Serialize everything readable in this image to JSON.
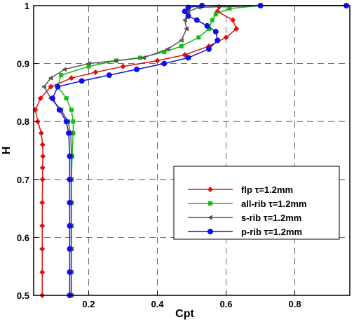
{
  "chart_data": {
    "type": "line",
    "title": "",
    "xlabel": "Cpt",
    "ylabel": "H",
    "xlim": [
      0.04,
      0.96
    ],
    "ylim": [
      0.5,
      1.0
    ],
    "xticks": [
      "0.2",
      "0.4",
      "0.6",
      "0.8"
    ],
    "xtick_values": [
      0.2,
      0.4,
      0.6,
      0.8
    ],
    "yticks": [
      "0.5",
      "0.6",
      "0.7",
      "0.8",
      "0.9",
      "1"
    ],
    "ytick_values": [
      0.5,
      0.6,
      0.7,
      0.8,
      0.9,
      1.0
    ],
    "grid": true,
    "legend_position": "lower-right",
    "series": [
      {
        "name": "flp τ=1.2mm",
        "color": "#e01010",
        "marker": "diamond",
        "points": [
          [
            0.065,
            0.5
          ],
          [
            0.065,
            0.54
          ],
          [
            0.065,
            0.58
          ],
          [
            0.065,
            0.62
          ],
          [
            0.065,
            0.66
          ],
          [
            0.066,
            0.7
          ],
          [
            0.066,
            0.72
          ],
          [
            0.067,
            0.74
          ],
          [
            0.066,
            0.76
          ],
          [
            0.062,
            0.78
          ],
          [
            0.052,
            0.8
          ],
          [
            0.045,
            0.82
          ],
          [
            0.06,
            0.84
          ],
          [
            0.09,
            0.86
          ],
          [
            0.15,
            0.875
          ],
          [
            0.22,
            0.885
          ],
          [
            0.3,
            0.895
          ],
          [
            0.4,
            0.905
          ],
          [
            0.48,
            0.915
          ],
          [
            0.55,
            0.93
          ],
          [
            0.6,
            0.945
          ],
          [
            0.63,
            0.96
          ],
          [
            0.62,
            0.975
          ],
          [
            0.575,
            0.99
          ],
          [
            0.58,
            0.998
          ],
          [
            0.7,
            1.0
          ],
          [
            0.95,
            1.0
          ]
        ]
      },
      {
        "name": "all-rib τ=1.2mm",
        "color": "#10c010",
        "marker": "square",
        "points": [
          [
            0.15,
            0.5
          ],
          [
            0.15,
            0.54
          ],
          [
            0.15,
            0.58
          ],
          [
            0.15,
            0.62
          ],
          [
            0.15,
            0.66
          ],
          [
            0.15,
            0.7
          ],
          [
            0.152,
            0.74
          ],
          [
            0.155,
            0.78
          ],
          [
            0.155,
            0.8
          ],
          [
            0.15,
            0.82
          ],
          [
            0.135,
            0.84
          ],
          [
            0.11,
            0.86
          ],
          [
            0.12,
            0.88
          ],
          [
            0.2,
            0.895
          ],
          [
            0.28,
            0.905
          ],
          [
            0.35,
            0.91
          ],
          [
            0.42,
            0.92
          ],
          [
            0.47,
            0.93
          ],
          [
            0.52,
            0.945
          ],
          [
            0.55,
            0.96
          ],
          [
            0.56,
            0.975
          ],
          [
            0.57,
            0.985
          ],
          [
            0.61,
            0.995
          ],
          [
            0.7,
            1.0
          ],
          [
            0.95,
            1.0
          ]
        ]
      },
      {
        "name": "s-rib τ=1.2mm",
        "color": "#555555",
        "marker": "triangle-left",
        "points": [
          [
            0.15,
            0.5
          ],
          [
            0.15,
            0.54
          ],
          [
            0.15,
            0.58
          ],
          [
            0.15,
            0.62
          ],
          [
            0.15,
            0.66
          ],
          [
            0.15,
            0.7
          ],
          [
            0.15,
            0.74
          ],
          [
            0.148,
            0.78
          ],
          [
            0.14,
            0.8
          ],
          [
            0.12,
            0.82
          ],
          [
            0.09,
            0.84
          ],
          [
            0.07,
            0.86
          ],
          [
            0.09,
            0.875
          ],
          [
            0.13,
            0.89
          ],
          [
            0.2,
            0.9
          ],
          [
            0.28,
            0.905
          ],
          [
            0.36,
            0.91
          ],
          [
            0.43,
            0.925
          ],
          [
            0.47,
            0.94
          ],
          [
            0.485,
            0.96
          ],
          [
            0.48,
            0.975
          ],
          [
            0.49,
            0.99
          ],
          [
            0.52,
            0.997
          ],
          [
            0.7,
            1.0
          ],
          [
            0.95,
            1.0
          ]
        ]
      },
      {
        "name": "p-rib τ=1.2mm",
        "color": "#1010e0",
        "marker": "circle",
        "points": [
          [
            0.145,
            0.5
          ],
          [
            0.145,
            0.54
          ],
          [
            0.145,
            0.58
          ],
          [
            0.145,
            0.62
          ],
          [
            0.145,
            0.66
          ],
          [
            0.145,
            0.7
          ],
          [
            0.145,
            0.74
          ],
          [
            0.142,
            0.78
          ],
          [
            0.135,
            0.8
          ],
          [
            0.115,
            0.82
          ],
          [
            0.095,
            0.84
          ],
          [
            0.11,
            0.86
          ],
          [
            0.18,
            0.87
          ],
          [
            0.26,
            0.88
          ],
          [
            0.34,
            0.89
          ],
          [
            0.42,
            0.9
          ],
          [
            0.49,
            0.91
          ],
          [
            0.55,
            0.925
          ],
          [
            0.575,
            0.94
          ],
          [
            0.57,
            0.955
          ],
          [
            0.545,
            0.965
          ],
          [
            0.515,
            0.975
          ],
          [
            0.49,
            0.982
          ],
          [
            0.48,
            0.99
          ],
          [
            0.49,
            0.997
          ],
          [
            0.53,
            1.0
          ],
          [
            0.7,
            1.0
          ],
          [
            0.95,
            1.0
          ]
        ]
      }
    ]
  }
}
